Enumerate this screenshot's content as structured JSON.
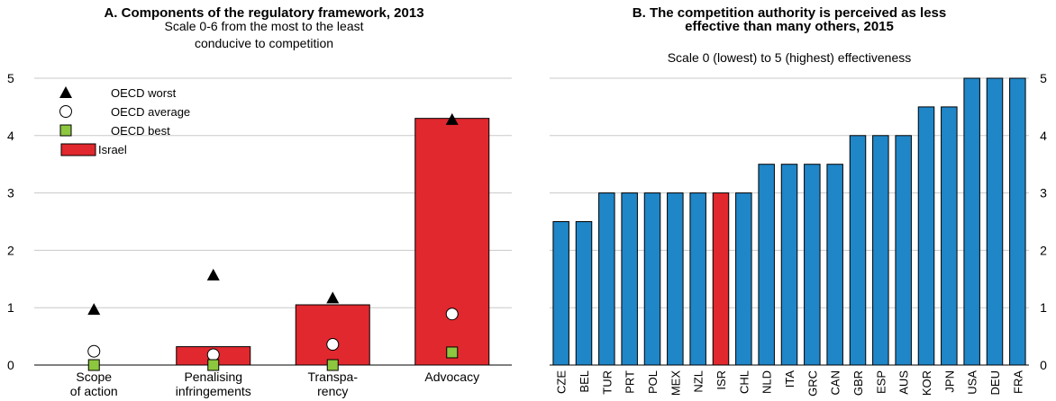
{
  "chart_data": [
    {
      "panel": "A",
      "type": "bar",
      "title": "A. Components of the regulatory framework, 2013",
      "subtitle_lines": [
        "Scale 0-6 from the most to the least",
        "conducive to competition"
      ],
      "categories": [
        [
          "Scope",
          "of action"
        ],
        [
          "Penalising",
          "infringements"
        ],
        [
          "Transpa-",
          "rency"
        ],
        [
          "Advocacy"
        ]
      ],
      "ylim": [
        0,
        5
      ],
      "yticks": [
        "0",
        "1",
        "2",
        "3",
        "4",
        "5"
      ],
      "bar_series": {
        "name": "Israel",
        "color": "#E0282E",
        "values": [
          0.0,
          0.32,
          1.05,
          4.3
        ]
      },
      "marker_series": [
        {
          "name": "OECD worst",
          "marker": "triangle",
          "color": "#000000",
          "values": [
            0.97,
            1.57,
            1.17,
            4.28
          ]
        },
        {
          "name": "OECD average",
          "marker": "circle",
          "color": "#ffffff",
          "values": [
            0.24,
            0.18,
            0.36,
            0.89
          ]
        },
        {
          "name": "OECD best",
          "marker": "square",
          "color": "#8DC63F",
          "values": [
            0.0,
            0.0,
            0.0,
            0.22
          ]
        }
      ],
      "legend": {
        "position": "top-left",
        "items": [
          {
            "label": "OECD worst",
            "marker": "triangle"
          },
          {
            "label": "OECD average",
            "marker": "circle"
          },
          {
            "label": "OECD best",
            "marker": "square"
          },
          {
            "label": "Israel",
            "marker": "bar"
          }
        ]
      },
      "grid": true
    },
    {
      "panel": "B",
      "type": "bar",
      "title_lines": [
        "B. The competition authority is perceived as less",
        "effective than many others, 2015"
      ],
      "subtitle": "Scale 0 (lowest) to 5 (highest) effectiveness",
      "categories": [
        "CZE",
        "BEL",
        "TUR",
        "PRT",
        "POL",
        "MEX",
        "NZL",
        "ISR",
        "CHL",
        "NLD",
        "ITA",
        "GRC",
        "CAN",
        "GBR",
        "ESP",
        "AUS",
        "KOR",
        "JPN",
        "USA",
        "DEU",
        "FRA"
      ],
      "values": [
        2.5,
        2.5,
        3,
        3,
        3,
        3,
        3,
        3,
        3,
        3.5,
        3.5,
        3.5,
        3.5,
        4,
        4,
        4,
        4.5,
        4.5,
        5,
        5,
        5
      ],
      "highlight": "ISR",
      "colors": {
        "default": "#1F86C8",
        "highlight": "#E0282E"
      },
      "ylim": [
        0,
        5
      ],
      "yticks": [
        "0",
        "1",
        "2",
        "3",
        "4",
        "5"
      ],
      "yaxis_side": "right",
      "grid": true
    }
  ]
}
